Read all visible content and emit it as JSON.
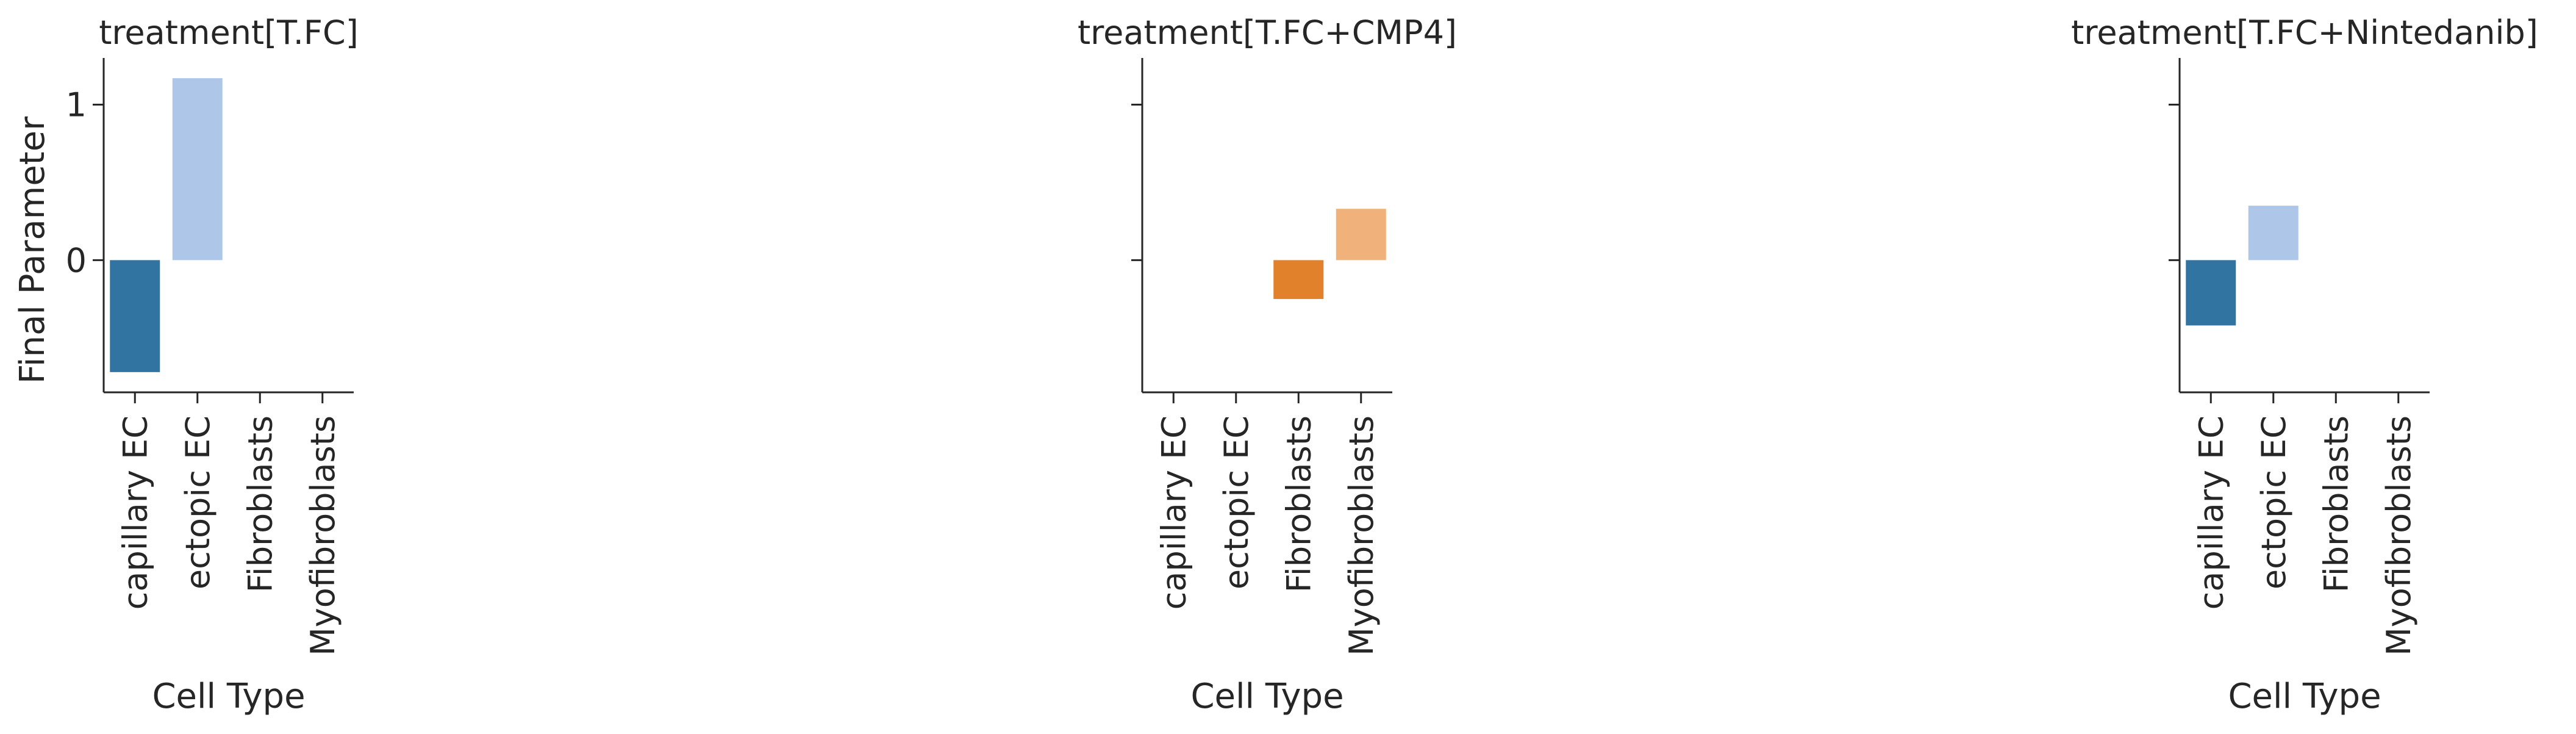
{
  "chart_data": {
    "type": "bar",
    "layout": "facet-grid",
    "shared_y": true,
    "ylabel": "Final Parameter",
    "xlabel": "Cell Type",
    "categories": [
      "capillary EC",
      "ectopic EC",
      "Fibroblasts",
      "Myofibroblasts"
    ],
    "yticks": [
      0,
      1
    ],
    "ylim": [
      -0.85,
      1.3
    ],
    "grid": false,
    "legend": "none",
    "panels": [
      {
        "title": "treatment[T.FC]",
        "values": [
          -0.72,
          1.17,
          0,
          0
        ],
        "colors": [
          "#3274a1",
          "#aec7e8",
          "#e1812c",
          "#f0b27a"
        ]
      },
      {
        "title": "treatment[T.FC+CMP4]",
        "values": [
          0,
          0,
          -0.25,
          0.33
        ],
        "colors": [
          "#3274a1",
          "#aec7e8",
          "#e1812c",
          "#f0b27a"
        ]
      },
      {
        "title": "treatment[T.FC+Nintedanib]",
        "values": [
          -0.42,
          0.35,
          0,
          0
        ],
        "colors": [
          "#3274a1",
          "#aec7e8",
          "#e1812c",
          "#f0b27a"
        ]
      }
    ]
  }
}
